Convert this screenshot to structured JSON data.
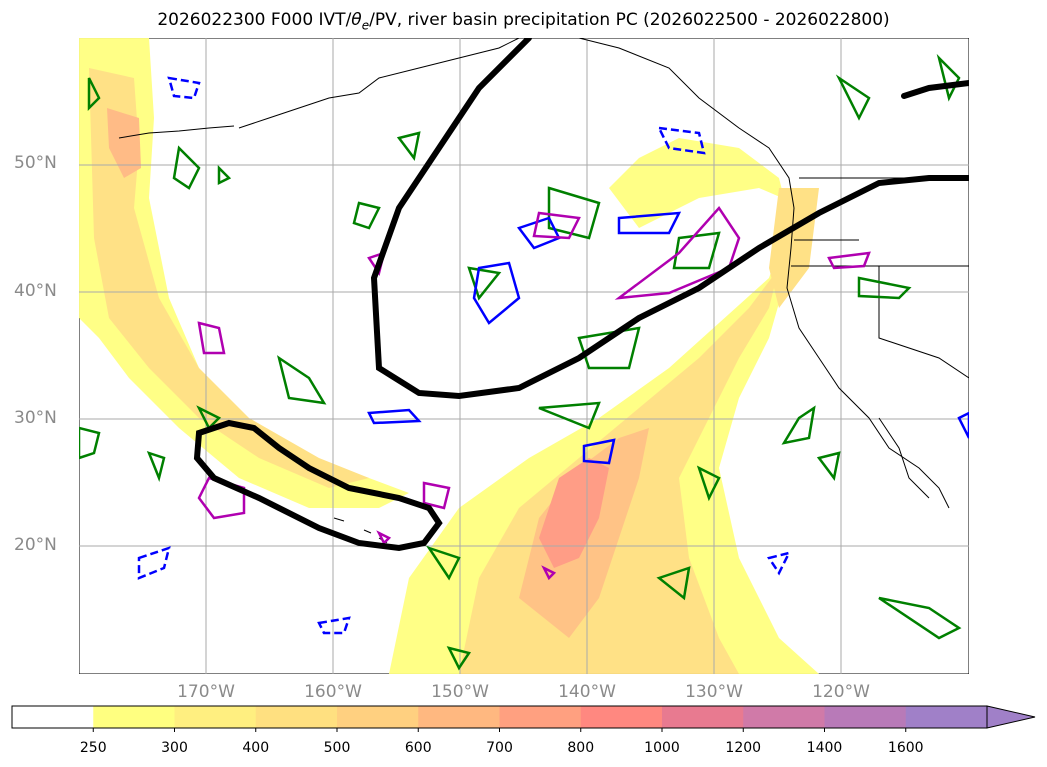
{
  "title": "2026022300 F000 IVT/θe/PV, river basin precipitation PC (2026022500 - 2026022800)",
  "title_parts": {
    "prefix": "2026022300 F000 IVT/",
    "theta": "θ",
    "theta_sub": "e",
    "suffix": "/PV, river basin precipitation PC (2026022500 - 2026022800)"
  },
  "map": {
    "lon_range": [
      -180,
      -110
    ],
    "lat_range": [
      10,
      60
    ],
    "lat_labels": [
      "50°N",
      "40°N",
      "30°N",
      "20°N"
    ],
    "lon_labels": [
      "170°W",
      "160°W",
      "150°W",
      "140°W",
      "130°W",
      "120°W"
    ],
    "gridlines": true
  },
  "colorbar": {
    "ticks": [
      "250",
      "300",
      "400",
      "500",
      "600",
      "700",
      "800",
      "1000",
      "1200",
      "1400",
      "1600"
    ],
    "colors": [
      "#ffffff",
      "#ffff80",
      "#ffef80",
      "#ffe080",
      "#ffd080",
      "#ffb880",
      "#ffa080",
      "#ff8880",
      "#e87a90",
      "#d07aa8",
      "#b87ab8",
      "#a080c8"
    ],
    "extend": "max"
  },
  "contour_colors": {
    "theta_e": "#000000",
    "pv_positive": "#008000",
    "pv_negative": "#0000ff",
    "precip_pc": "#b000b0"
  }
}
